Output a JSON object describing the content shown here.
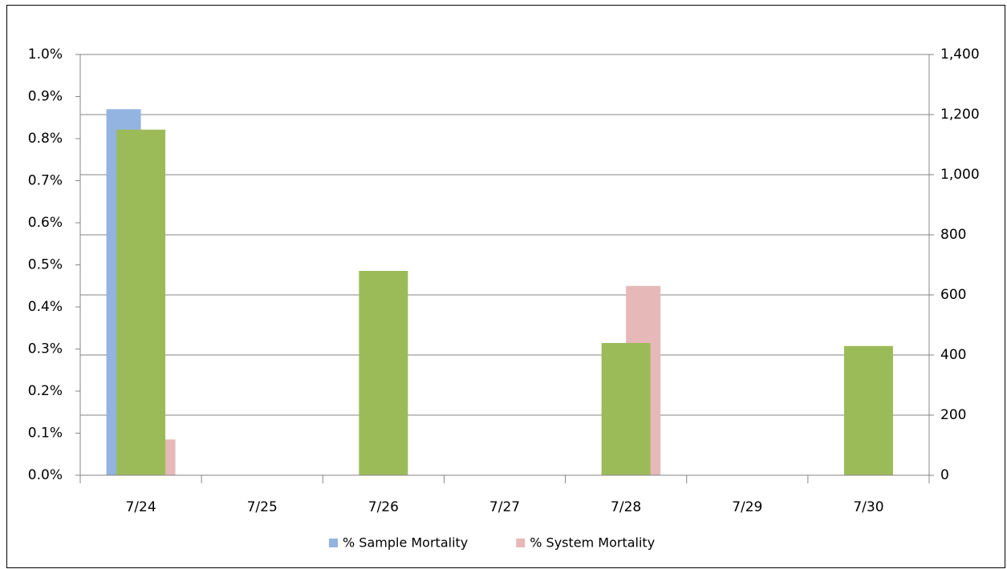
{
  "chart_data": {
    "type": "bar",
    "categories": [
      "7/24",
      "7/25",
      "7/26",
      "7/27",
      "7/28",
      "7/29",
      "7/30"
    ],
    "series": [
      {
        "name": "% Sample Mortality",
        "color": "#93b3e0",
        "values": [
          0.87,
          0,
          0,
          0,
          0,
          0,
          0
        ]
      },
      {
        "name": "% System Mortality",
        "color": "#e6b9b8",
        "values": [
          0.085,
          0,
          0,
          0,
          0.45,
          0,
          0
        ]
      },
      {
        "color": "#9bbb59",
        "axis": "y2",
        "values": [
          1150,
          0,
          680,
          0,
          440,
          0,
          430
        ]
      }
    ],
    "ylim": [
      0,
      1.0
    ],
    "yticks": [
      {
        "value": 0,
        "label": "0.0%"
      },
      {
        "value": 0.1,
        "label": "0.1%"
      },
      {
        "value": 0.2,
        "label": "0.2%"
      },
      {
        "value": 0.3,
        "label": "0.3%"
      },
      {
        "value": 0.4,
        "label": "0.4%"
      },
      {
        "value": 0.5,
        "label": "0.5%"
      },
      {
        "value": 0.6,
        "label": "0.6%"
      },
      {
        "value": 0.7,
        "label": "0.7%"
      },
      {
        "value": 0.8,
        "label": "0.8%"
      },
      {
        "value": 0.9,
        "label": "0.9%"
      },
      {
        "value": 1.0,
        "label": "1.0%"
      }
    ],
    "y2lim": [
      0,
      1400
    ],
    "y2ticks": [
      0,
      200,
      400,
      600,
      800,
      {
        "value": 1000,
        "label": "1,000"
      },
      {
        "value": 1200,
        "label": "1,200"
      },
      {
        "value": 1400,
        "label": "1,400"
      }
    ],
    "grid": "y2"
  }
}
